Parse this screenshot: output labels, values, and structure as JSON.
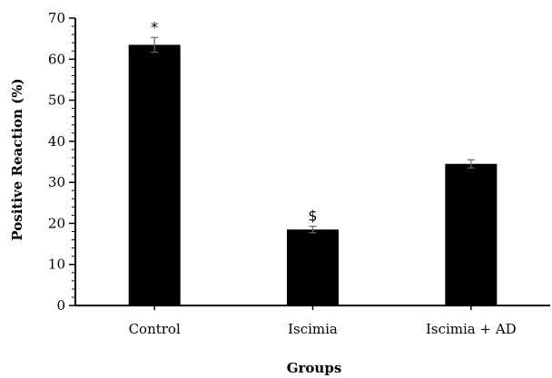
{
  "chart_data": {
    "type": "bar",
    "categories": [
      "Control",
      "Iscimia",
      "Iscimia + AD"
    ],
    "values": [
      63.5,
      18.5,
      34.5
    ],
    "errors": [
      1.8,
      0.8,
      1.0
    ],
    "annotations": [
      "*",
      "$",
      ""
    ],
    "xlabel": "Groups",
    "ylabel": "Positive Reaction (%)",
    "ylim": [
      0,
      70
    ],
    "yticks": [
      0,
      10,
      20,
      30,
      40,
      50,
      60,
      70
    ],
    "grid": false,
    "bar_color": "#000000",
    "error_color": "#666666"
  }
}
